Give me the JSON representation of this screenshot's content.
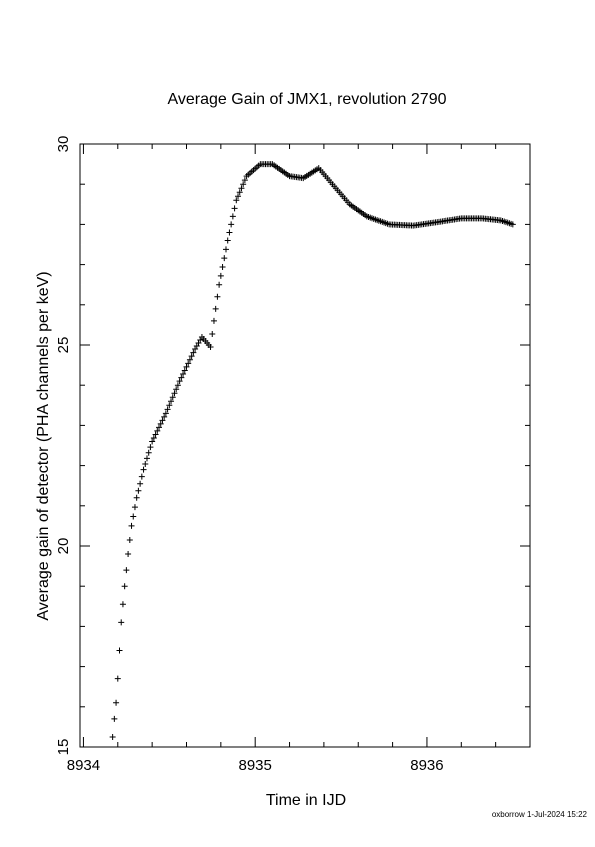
{
  "chart_data": {
    "type": "scatter",
    "title": "Average Gain of JMX1, revolution 2790",
    "xlabel": "Time in IJD",
    "ylabel": "Average gain of detector (PHA channels per keV)",
    "xlim": [
      8933.98,
      8936.6
    ],
    "ylim": [
      15,
      30
    ],
    "x_ticks": [
      8934,
      8935,
      8936
    ],
    "y_ticks": [
      15,
      20,
      25,
      30
    ],
    "marker": "+",
    "color": "#000000",
    "grid": false,
    "keypoints": [
      [
        8934.17,
        15.25
      ],
      [
        8934.18,
        15.7
      ],
      [
        8934.19,
        16.1
      ],
      [
        8934.2,
        16.7
      ],
      [
        8934.21,
        17.4
      ],
      [
        8934.22,
        18.1
      ],
      [
        8934.24,
        19.0
      ],
      [
        8934.26,
        19.8
      ],
      [
        8934.28,
        20.5
      ],
      [
        8934.31,
        21.2
      ],
      [
        8934.35,
        21.9
      ],
      [
        8934.4,
        22.6
      ],
      [
        8934.48,
        23.3
      ],
      [
        8934.56,
        24.1
      ],
      [
        8934.65,
        24.9
      ],
      [
        8934.69,
        25.2
      ],
      [
        8934.74,
        24.95
      ],
      [
        8934.76,
        25.6
      ],
      [
        8934.79,
        26.5
      ],
      [
        8934.84,
        27.6
      ],
      [
        8934.89,
        28.6
      ],
      [
        8934.95,
        29.2
      ],
      [
        8935.03,
        29.5
      ],
      [
        8935.1,
        29.5
      ],
      [
        8935.2,
        29.2
      ],
      [
        8935.28,
        29.15
      ],
      [
        8935.37,
        29.4
      ],
      [
        8935.45,
        29.0
      ],
      [
        8935.55,
        28.5
      ],
      [
        8935.65,
        28.2
      ],
      [
        8935.78,
        28.0
      ],
      [
        8935.92,
        27.97
      ],
      [
        8936.05,
        28.05
      ],
      [
        8936.2,
        28.15
      ],
      [
        8936.32,
        28.15
      ],
      [
        8936.43,
        28.1
      ],
      [
        8936.5,
        28.0
      ]
    ],
    "sample_step_days": 0.01
  },
  "footer": "oxborrow   1-Jul-2024 15:22"
}
